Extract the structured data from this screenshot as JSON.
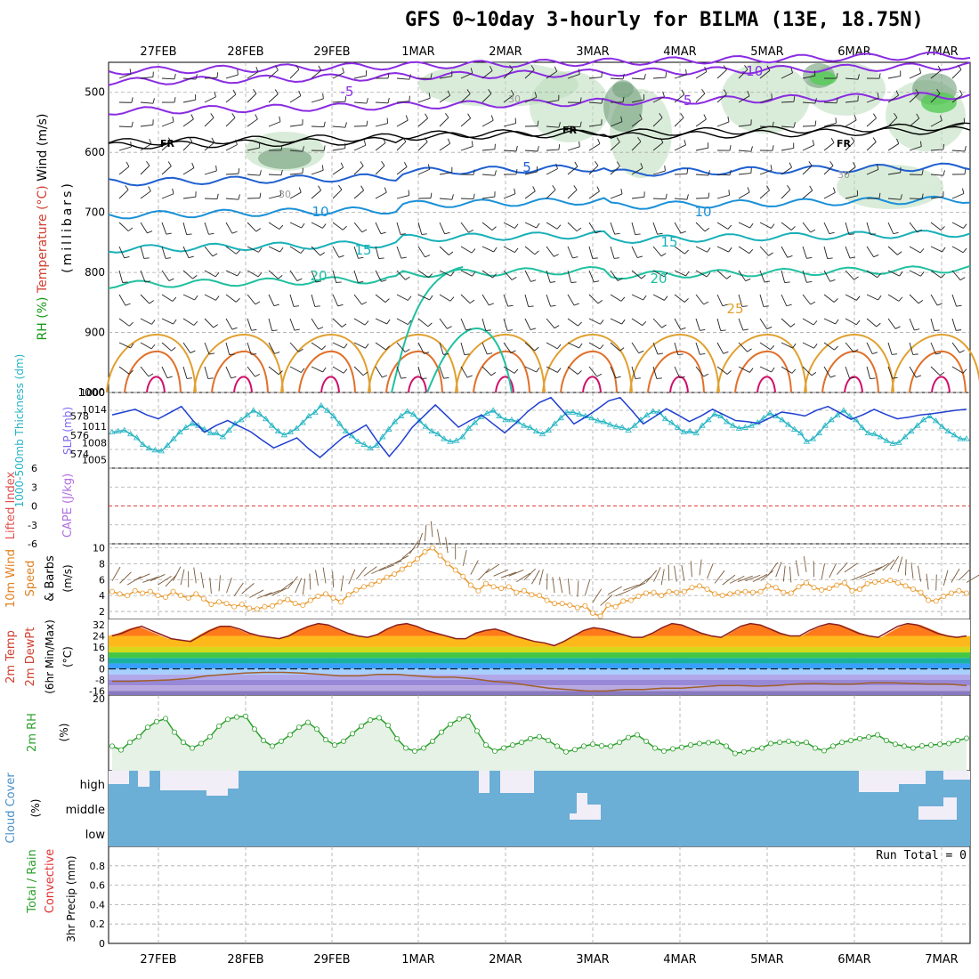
{
  "title": "GFS 0~10day 3-hourly for BILMA (13E, 18.75N)",
  "dates": [
    "27FEB",
    "28FEB",
    "29FEB",
    "1MAR",
    "2MAR",
    "3MAR",
    "4MAR",
    "5MAR",
    "6MAR",
    "7MAR"
  ],
  "run_total": "Run Total = 0",
  "colors": {
    "temp_warm": "#ff6a00",
    "rh_green": "#2ca02c",
    "cloud_blue": "#6baed6",
    "thickness": "#26b5c4",
    "slp": "#1f3fd0",
    "wind10": "#e89a2f"
  },
  "chart_data": [
    {
      "type": "contour",
      "panel": "upper-air",
      "ylabel_parts": [
        "RH (%)",
        "Temperature (°C)",
        "Wind (m/s)"
      ],
      "ylabel_unit": "(millibars)",
      "yticks": [
        500,
        600,
        700,
        800,
        900,
        1000
      ],
      "ylim": [
        450,
        1000
      ],
      "contour_labels": [
        "-10",
        "-5",
        "-5",
        "FR",
        "FR",
        "FR",
        "5",
        "10",
        "10",
        "15",
        "15",
        "20",
        "20",
        "25",
        "30",
        "30",
        "30"
      ],
      "levels_c": [
        -10,
        -5,
        0,
        5,
        10,
        15,
        20,
        25
      ]
    },
    {
      "type": "line",
      "panel": "thickness-slp",
      "ylabel_left": "1000-500mb Thickness (dm)",
      "ylabel_right": "SLP (mb)",
      "yticks_left": [
        574,
        576,
        578
      ],
      "yticks_right": [
        1005,
        1008,
        1011,
        1014
      ],
      "series": [
        {
          "name": "Thickness",
          "values": [
            576.3,
            576.4,
            576.5,
            576.1,
            575.7,
            575.0,
            574.6,
            574.4,
            574.3,
            574.9,
            575.6,
            576.3,
            576.8,
            577.2,
            577.0,
            576.6,
            576.2,
            576.2,
            575.8,
            576.5,
            577.2,
            577.6,
            578.1,
            578.6,
            578.2,
            577.7,
            577.0,
            576.4,
            576.0,
            576.3,
            576.7,
            577.3,
            578.0,
            578.4,
            579.1,
            578.6,
            578.0,
            577.2,
            576.4,
            575.9,
            575.3,
            575.0,
            574.6,
            574.9,
            575.8,
            576.6,
            577.4,
            578.0,
            578.5,
            578.2,
            577.5,
            576.9,
            576.4,
            576.1,
            575.6,
            575.3,
            575.4,
            575.8,
            576.7,
            577.3,
            577.9,
            578.3,
            578.6,
            578.0,
            577.6,
            577.6,
            577.4,
            577.0,
            576.8,
            576.4,
            576.1,
            576.5,
            577.2,
            577.8,
            578.4,
            578.4,
            578.2,
            578.0,
            577.8,
            577.5,
            577.4,
            577.1,
            576.9,
            576.8,
            576.5,
            577.0,
            577.6,
            578.1,
            578.5,
            578.4,
            577.7,
            577.3,
            576.8,
            576.3,
            576.4,
            576.2,
            577.0,
            577.6,
            578.2,
            578.0,
            577.4,
            577.0,
            576.7,
            576.8,
            577.0,
            577.3,
            577.8,
            578.3,
            578.0,
            577.6,
            577.1,
            576.6,
            576.2,
            575.3,
            575.6,
            576.2,
            577.0,
            577.6,
            578.1,
            578.6,
            578.0,
            577.6,
            576.8,
            576.2,
            576.1,
            575.8,
            575.4,
            575.1,
            575.2,
            575.8,
            576.4,
            577.0,
            577.6,
            578.0,
            577.5,
            576.9,
            576.4,
            576.0,
            575.6,
            575.6
          ]
        },
        {
          "name": "SLP",
          "values": [
            1013.0,
            1013.5,
            1014.0,
            1013.0,
            1012.3,
            1013.4,
            1014.5,
            1012.0,
            1009.9,
            1011.1,
            1012.0,
            1011.0,
            1010.0,
            1008.5,
            1007.1,
            1008.0,
            1008.9,
            1007.0,
            1005.4,
            1007.2,
            1009.0,
            1010.0,
            1011.2,
            1008.2,
            1005.6,
            1008.0,
            1010.8,
            1012.8,
            1014.8,
            1012.8,
            1010.8,
            1012.0,
            1013.0,
            1011.4,
            1009.8,
            1011.6,
            1013.6,
            1015.2,
            1016.1,
            1013.8,
            1011.4,
            1012.6,
            1014.0,
            1015.5,
            1016.1,
            1013.8,
            1011.4,
            1012.7,
            1014.1,
            1013.0,
            1011.8,
            1012.8,
            1014.0,
            1013.0,
            1012.0,
            1011.8,
            1011.5,
            1012.5,
            1013.5,
            1013.2,
            1012.8,
            1013.8,
            1014.5,
            1013.4,
            1012.2,
            1013.0,
            1014.0,
            1013.1,
            1012.3,
            1012.6,
            1013.0,
            1013.2,
            1013.5,
            1013.8,
            1014.0
          ]
        }
      ]
    },
    {
      "type": "line",
      "panel": "lifted-index-cape",
      "ylabel_left": "Lifted Index",
      "ylabel_right": "CAPE (J/kg)",
      "yticks": [
        6,
        3,
        0,
        -3,
        -6
      ],
      "ylim": [
        -6,
        6
      ],
      "reference_line": 0
    },
    {
      "type": "line",
      "panel": "10m-wind",
      "ylabel": "10m Wind Speed & Barbs",
      "yunit": "(m/s)",
      "yticks": [
        2,
        4,
        6,
        8,
        10
      ],
      "ylim": [
        1,
        10.5
      ],
      "series": [
        {
          "name": "10m Wind Speed",
          "values": [
            4.5,
            4.2,
            4.0,
            4.6,
            4.3,
            4.5,
            4.0,
            3.8,
            4.5,
            4.0,
            3.7,
            4.2,
            3.6,
            2.9,
            3.2,
            3.0,
            2.6,
            2.9,
            2.4,
            2.3,
            2.6,
            2.7,
            3.2,
            3.5,
            3.0,
            2.8,
            3.4,
            3.9,
            4.2,
            3.7,
            3.2,
            4.1,
            4.7,
            5.1,
            5.4,
            5.8,
            6.3,
            6.7,
            7.3,
            7.9,
            8.6,
            9.5,
            10.0,
            9.0,
            8.0,
            7.2,
            6.4,
            5.3,
            4.6,
            5.5,
            5.1,
            4.9,
            5.1,
            4.4,
            4.6,
            4.1,
            4.0,
            3.4,
            3.0,
            3.0,
            2.8,
            2.5,
            2.7,
            1.8,
            1.4,
            2.8,
            2.6,
            3.3,
            3.4,
            3.9,
            4.3,
            4.4,
            4.0,
            4.5,
            4.4,
            4.5,
            5.0,
            5.2,
            4.8,
            4.2,
            4.0,
            4.2,
            4.4,
            4.5,
            4.4,
            4.5,
            5.2,
            5.0,
            4.4,
            4.3,
            5.1,
            5.6,
            5.0,
            4.7,
            4.9,
            5.3,
            5.6,
            4.6,
            4.8,
            5.5,
            5.7,
            5.8,
            5.9,
            5.6,
            5.2,
            4.8,
            4.4,
            3.4,
            3.3,
            3.9,
            4.3,
            4.6,
            4.3
          ]
        }
      ]
    },
    {
      "type": "area",
      "panel": "2m-temp",
      "ylabel": "2m Temp 2m DewPt (6hr Min/Max)",
      "yunit": "(°C)",
      "yticks": [
        32,
        24,
        16,
        8,
        0,
        -8,
        -16
      ],
      "ylim": [
        -19,
        36
      ],
      "series": [
        {
          "name": "2m Temp",
          "values": [
            24,
            26,
            29,
            31,
            28,
            25,
            22,
            21,
            20,
            24,
            28,
            31,
            31,
            29,
            26,
            24,
            23,
            22,
            24,
            28,
            31,
            33,
            32,
            29,
            26,
            24,
            23,
            25,
            29,
            32,
            33,
            31,
            28,
            26,
            24,
            22,
            22,
            26,
            28,
            29,
            27,
            24,
            22,
            20,
            19,
            17,
            20,
            24,
            28,
            30,
            29,
            27,
            25,
            23,
            23,
            26,
            30,
            33,
            32,
            29,
            26,
            24,
            23,
            27,
            31,
            33,
            32,
            29,
            26,
            24,
            24,
            28,
            31,
            33,
            32,
            29,
            26,
            24,
            23,
            27,
            31,
            33,
            32,
            29,
            26,
            24,
            23,
            24
          ]
        },
        {
          "name": "2m DewPt",
          "values": [
            -9,
            -9,
            -8.5,
            -8,
            -7,
            -5,
            -4,
            -3,
            -2.5,
            -2.5,
            -3,
            -4,
            -5,
            -5,
            -4,
            -4,
            -5,
            -6,
            -6,
            -7,
            -9,
            -10,
            -12,
            -14,
            -15,
            -16,
            -16,
            -15,
            -15,
            -14,
            -14,
            -13,
            -12,
            -12,
            -12.5,
            -12,
            -11,
            -10.5,
            -11,
            -11,
            -10,
            -10,
            -10.5,
            -11,
            -11,
            -12
          ]
        }
      ]
    },
    {
      "type": "line",
      "panel": "2m-rh",
      "ylabel": "2m RH",
      "yunit": "(%)",
      "yticks": [
        20
      ],
      "series": [
        {
          "name": "2m RH",
          "values": [
            6.5,
            5.5,
            7.5,
            9.0,
            11.5,
            13.0,
            13.8,
            10.2,
            7.5,
            6.0,
            7.2,
            9.0,
            11.8,
            13.6,
            14.2,
            14.4,
            11.0,
            8.0,
            6.5,
            7.8,
            9.5,
            11.5,
            12.8,
            11.0,
            8.2,
            6.8,
            7.8,
            9.8,
            11.8,
            13.4,
            14.0,
            12.0,
            8.5,
            6.0,
            5.2,
            6.0,
            7.8,
            10.2,
            12.3,
            13.7,
            14.4,
            10.5,
            6.8,
            5.2,
            6.0,
            6.8,
            7.5,
            8.5,
            9.0,
            8.0,
            6.5,
            5.0,
            5.6,
            6.5,
            7.0,
            6.6,
            6.5,
            7.5,
            8.8,
            9.5,
            7.8,
            6.0,
            5.2,
            5.8,
            6.2,
            6.8,
            7.2,
            7.4,
            7.6,
            6.5,
            4.6,
            5.0,
            5.6,
            6.0,
            7.2,
            7.5,
            7.8,
            7.2,
            7.5,
            6.0,
            5.3,
            6.5,
            7.5,
            8.0,
            8.5,
            8.9,
            9.5,
            8.0,
            7.0,
            6.5,
            6.0,
            6.6,
            6.8,
            7.0,
            7.2,
            8.0,
            8.6
          ]
        }
      ]
    },
    {
      "type": "heatmap",
      "panel": "cloud-cover",
      "ylabel": "Cloud Cover",
      "yunit": "(%)",
      "rows": [
        "high",
        "middle",
        "low"
      ]
    },
    {
      "type": "bar",
      "panel": "3hr-precip",
      "ylabel_parts": [
        "Total / Rain",
        "Convective"
      ],
      "yunit": "3hr Precip (mm)",
      "yticks": [
        0,
        0.2,
        0.4,
        0.6,
        0.8
      ],
      "ylim": [
        0,
        1.0
      ],
      "values": []
    }
  ]
}
